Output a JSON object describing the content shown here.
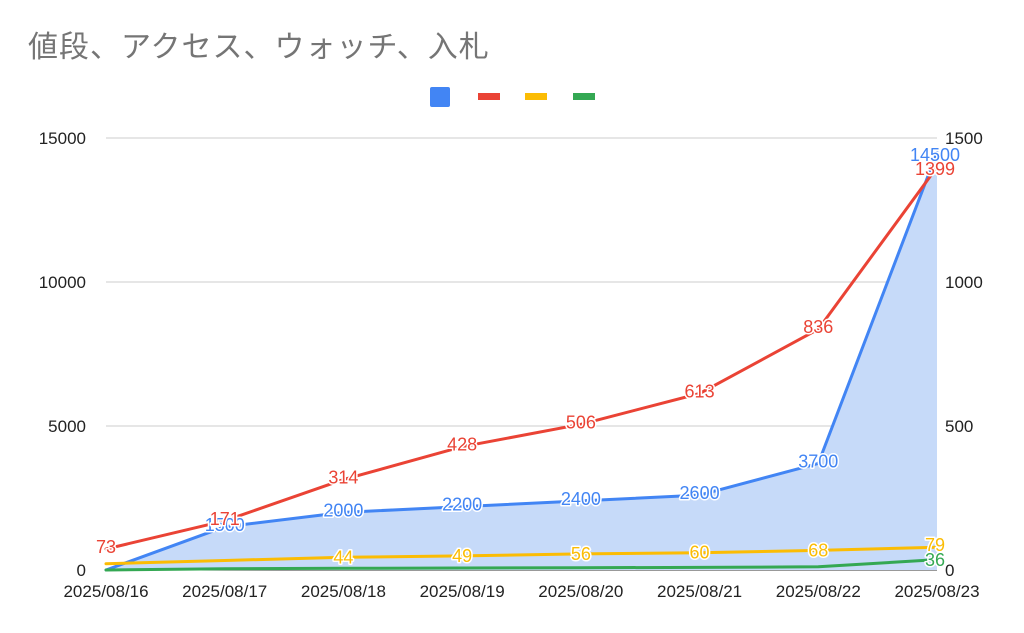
{
  "title": "値段、アクセス、ウォッチ、入札",
  "chart_data": {
    "type": "area",
    "categories": [
      "2025/08/16",
      "2025/08/17",
      "2025/08/18",
      "2025/08/19",
      "2025/08/20",
      "2025/08/21",
      "2025/08/22",
      "2025/08/23"
    ],
    "left_axis": {
      "ylim": [
        0,
        15000
      ],
      "ticks": [
        "0",
        "5000",
        "10000",
        "15000"
      ]
    },
    "right_axis": {
      "ylim": [
        0,
        1500
      ],
      "ticks": [
        "0",
        "500",
        "1000",
        "1500"
      ]
    },
    "grid": true,
    "legend_position": "top",
    "series": [
      {
        "key": "price",
        "axis": "left",
        "style": "area",
        "color": "#4285f4",
        "fill": "#c6daf9",
        "values": [
          0,
          1500,
          2000,
          2200,
          2400,
          2600,
          3700,
          14500
        ],
        "labels": [
          "",
          "1500",
          "2000",
          "2200",
          "2400",
          "2600",
          "3700",
          "14500"
        ]
      },
      {
        "key": "access",
        "axis": "right",
        "style": "line",
        "color": "#ea4335",
        "values": [
          73,
          171,
          314,
          428,
          506,
          613,
          836,
          1399
        ],
        "labels": [
          "73",
          "171",
          "314",
          "428",
          "506",
          "613",
          "836",
          "1399"
        ]
      },
      {
        "key": "watch",
        "axis": "right",
        "style": "line",
        "color": "#fbbc04",
        "values": [
          22,
          33,
          44,
          49,
          56,
          60,
          68,
          79
        ],
        "labels": [
          "",
          "",
          "44",
          "49",
          "56",
          "60",
          "68",
          "79"
        ]
      },
      {
        "key": "bid",
        "axis": "right",
        "style": "line",
        "color": "#34a853",
        "values": [
          0,
          4,
          6,
          7,
          8,
          9,
          11,
          36
        ],
        "labels": [
          "",
          "",
          "",
          "",
          "",
          "",
          "",
          "36"
        ]
      }
    ]
  }
}
